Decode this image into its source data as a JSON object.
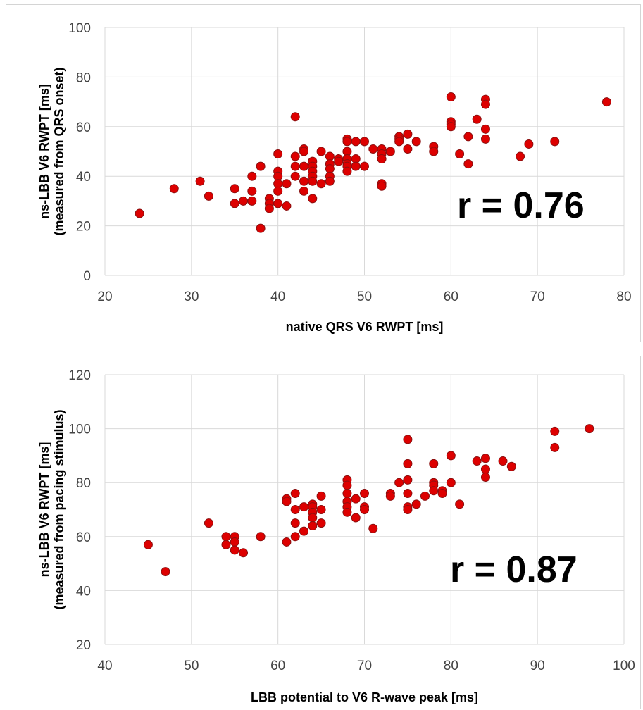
{
  "chart_data": [
    {
      "type": "scatter",
      "xlabel": "native QRS V6 RWPT [ms]",
      "ylabel_line1": "ns-LBB V6 RWPT [ms]",
      "ylabel_line2": "(measured from QRS onset)",
      "annotation": "r = 0.76",
      "xlim": [
        20,
        80
      ],
      "ylim": [
        0,
        100
      ],
      "xticks": [
        20,
        30,
        40,
        50,
        60,
        70,
        80
      ],
      "yticks": [
        0,
        20,
        40,
        60,
        80,
        100
      ],
      "grid": true,
      "marker_color": "#dd0000",
      "points": [
        [
          24,
          25
        ],
        [
          28,
          35
        ],
        [
          31,
          38
        ],
        [
          32,
          32
        ],
        [
          35,
          35
        ],
        [
          35,
          29
        ],
        [
          36,
          30
        ],
        [
          37,
          40
        ],
        [
          37,
          34
        ],
        [
          37,
          30
        ],
        [
          38,
          44
        ],
        [
          38,
          19
        ],
        [
          39,
          31
        ],
        [
          39,
          29
        ],
        [
          39,
          27
        ],
        [
          40,
          49
        ],
        [
          40,
          42
        ],
        [
          40,
          40
        ],
        [
          40,
          37
        ],
        [
          40,
          34
        ],
        [
          40,
          29
        ],
        [
          41,
          37
        ],
        [
          41,
          28
        ],
        [
          42,
          64
        ],
        [
          42,
          48
        ],
        [
          42,
          44
        ],
        [
          42,
          40
        ],
        [
          43,
          51
        ],
        [
          43,
          50
        ],
        [
          43,
          44
        ],
        [
          43,
          38
        ],
        [
          43,
          34
        ],
        [
          44,
          46
        ],
        [
          44,
          44
        ],
        [
          44,
          42
        ],
        [
          44,
          40
        ],
        [
          44,
          38
        ],
        [
          44,
          31
        ],
        [
          45,
          50
        ],
        [
          45,
          37
        ],
        [
          46,
          48
        ],
        [
          46,
          45
        ],
        [
          46,
          43
        ],
        [
          46,
          40
        ],
        [
          46,
          38
        ],
        [
          47,
          47
        ],
        [
          47,
          46
        ],
        [
          48,
          55
        ],
        [
          48,
          54
        ],
        [
          48,
          50
        ],
        [
          48,
          47
        ],
        [
          48,
          45
        ],
        [
          48,
          44
        ],
        [
          48,
          42
        ],
        [
          49,
          54
        ],
        [
          49,
          47
        ],
        [
          49,
          44
        ],
        [
          50,
          54
        ],
        [
          50,
          44
        ],
        [
          51,
          51
        ],
        [
          52,
          51
        ],
        [
          52,
          49
        ],
        [
          52,
          47
        ],
        [
          52,
          37
        ],
        [
          52,
          36
        ],
        [
          53,
          50
        ],
        [
          54,
          56
        ],
        [
          54,
          55
        ],
        [
          54,
          54
        ],
        [
          55,
          57
        ],
        [
          55,
          51
        ],
        [
          56,
          54
        ],
        [
          58,
          52
        ],
        [
          58,
          50
        ],
        [
          60,
          72
        ],
        [
          60,
          62
        ],
        [
          60,
          61
        ],
        [
          60,
          60
        ],
        [
          61,
          49
        ],
        [
          62,
          56
        ],
        [
          62,
          45
        ],
        [
          63,
          63
        ],
        [
          64,
          71
        ],
        [
          64,
          69
        ],
        [
          64,
          59
        ],
        [
          64,
          55
        ],
        [
          68,
          48
        ],
        [
          69,
          53
        ],
        [
          72,
          54
        ],
        [
          78,
          70
        ]
      ]
    },
    {
      "type": "scatter",
      "xlabel": "LBB potential to V6 R-wave peak [ms]",
      "ylabel_line1": "ns-LBB V6 RWPT [ms]",
      "ylabel_line2": "(measured from pacing stimulus)",
      "annotation": "r = 0.87",
      "xlim": [
        40,
        100
      ],
      "ylim": [
        20,
        120
      ],
      "xticks": [
        40,
        50,
        60,
        70,
        80,
        90,
        100
      ],
      "yticks": [
        20,
        40,
        60,
        80,
        100,
        120
      ],
      "grid": true,
      "marker_color": "#dd0000",
      "points": [
        [
          45,
          57
        ],
        [
          47,
          47
        ],
        [
          52,
          65
        ],
        [
          54,
          60
        ],
        [
          54,
          57
        ],
        [
          55,
          60
        ],
        [
          55,
          58
        ],
        [
          55,
          55
        ],
        [
          56,
          54
        ],
        [
          58,
          60
        ],
        [
          61,
          74
        ],
        [
          61,
          73
        ],
        [
          61,
          58
        ],
        [
          62,
          76
        ],
        [
          62,
          70
        ],
        [
          62,
          65
        ],
        [
          62,
          60
        ],
        [
          63,
          71
        ],
        [
          63,
          62
        ],
        [
          64,
          72
        ],
        [
          64,
          71
        ],
        [
          64,
          69
        ],
        [
          64,
          67
        ],
        [
          64,
          64
        ],
        [
          65,
          75
        ],
        [
          65,
          70
        ],
        [
          65,
          65
        ],
        [
          68,
          81
        ],
        [
          68,
          79
        ],
        [
          68,
          76
        ],
        [
          68,
          73
        ],
        [
          68,
          71
        ],
        [
          68,
          69
        ],
        [
          69,
          74
        ],
        [
          69,
          67
        ],
        [
          70,
          76
        ],
        [
          70,
          71
        ],
        [
          70,
          70
        ],
        [
          71,
          63
        ],
        [
          73,
          76
        ],
        [
          73,
          75
        ],
        [
          74,
          80
        ],
        [
          75,
          96
        ],
        [
          75,
          87
        ],
        [
          75,
          81
        ],
        [
          75,
          76
        ],
        [
          75,
          71
        ],
        [
          75,
          70
        ],
        [
          76,
          72
        ],
        [
          77,
          75
        ],
        [
          78,
          87
        ],
        [
          78,
          80
        ],
        [
          78,
          79
        ],
        [
          78,
          77
        ],
        [
          79,
          77
        ],
        [
          79,
          76
        ],
        [
          80,
          90
        ],
        [
          80,
          80
        ],
        [
          81,
          72
        ],
        [
          83,
          88
        ],
        [
          84,
          89
        ],
        [
          84,
          85
        ],
        [
          84,
          82
        ],
        [
          86,
          88
        ],
        [
          87,
          86
        ],
        [
          92,
          99
        ],
        [
          92,
          93
        ],
        [
          96,
          100
        ]
      ]
    }
  ]
}
